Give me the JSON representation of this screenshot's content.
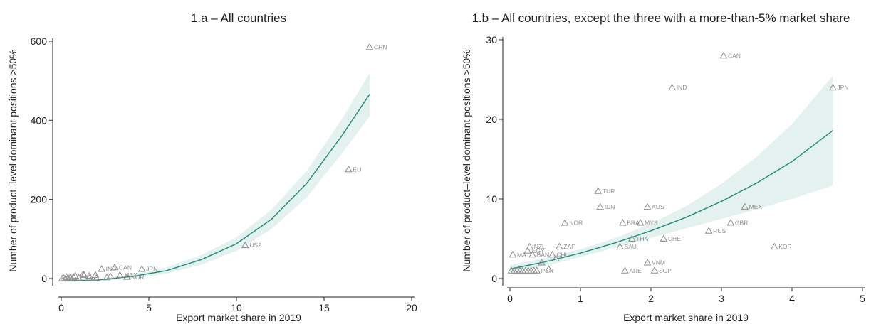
{
  "colors": {
    "fit_line": "#1f8a78",
    "ci_band": "#e3f2ef",
    "marker": "#8c8c8c",
    "axis": "#222222"
  },
  "chart_data": [
    {
      "type": "scatter",
      "title": "1.a – All countries",
      "xlabel": "Export market share in 2019",
      "ylabel": "Number of product–level dominant positions >50%",
      "xlim": [
        0,
        20
      ],
      "ylim": [
        0,
        600
      ],
      "xticks": [
        "0",
        "5",
        "10",
        "15",
        "20"
      ],
      "yticks": [
        "0",
        "200",
        "400",
        "600"
      ],
      "points": [
        {
          "label": "CHN",
          "x": 17.6,
          "y": 585
        },
        {
          "label": "EU",
          "x": 16.4,
          "y": 276
        },
        {
          "label": "USA",
          "x": 10.5,
          "y": 84
        },
        {
          "label": "JPN",
          "x": 4.6,
          "y": 24
        },
        {
          "label": "CAN",
          "x": 3.05,
          "y": 28
        },
        {
          "label": "IND",
          "x": 2.3,
          "y": 24
        },
        {
          "label": "MEX",
          "x": 3.35,
          "y": 9
        },
        {
          "label": "KOR",
          "x": 3.75,
          "y": 4
        },
        {
          "label": "",
          "x": 2.8,
          "y": 6
        },
        {
          "label": "",
          "x": 1.25,
          "y": 11
        },
        {
          "label": "",
          "x": 1.6,
          "y": 7
        },
        {
          "label": "",
          "x": 1.3,
          "y": 9
        },
        {
          "label": "",
          "x": 1.95,
          "y": 9
        },
        {
          "label": "",
          "x": 0.8,
          "y": 7
        },
        {
          "label": "",
          "x": 0.7,
          "y": 4
        },
        {
          "label": "",
          "x": 0.3,
          "y": 4
        },
        {
          "label": "",
          "x": 0.5,
          "y": 2
        },
        {
          "label": "",
          "x": 0.15,
          "y": 1
        },
        {
          "label": "",
          "x": 0.4,
          "y": 1
        },
        {
          "label": "",
          "x": 1.0,
          "y": 2
        },
        {
          "label": "",
          "x": 1.6,
          "y": 1
        },
        {
          "label": "",
          "x": 2.0,
          "y": 1
        },
        {
          "label": "",
          "x": 2.6,
          "y": 3
        },
        {
          "label": "",
          "x": 0.05,
          "y": 0
        },
        {
          "label": "",
          "x": 0.25,
          "y": 0
        },
        {
          "label": "",
          "x": 0.6,
          "y": 0
        }
      ],
      "fit": {
        "x": [
          0,
          2,
          4,
          6,
          8,
          10,
          12,
          14,
          16,
          17.6
        ],
        "y": [
          -6,
          -4,
          5,
          20,
          48,
          88,
          150,
          240,
          360,
          466
        ],
        "lo": [
          -9,
          -7,
          0,
          12,
          35,
          70,
          125,
          205,
          315,
          410
        ],
        "hi": [
          -3,
          -1,
          10,
          28,
          60,
          104,
          174,
          272,
          402,
          520
        ]
      }
    },
    {
      "type": "scatter",
      "title": "1.b – All countries, except the three with a more-than-5% market share",
      "xlabel": "Export market share in 2019",
      "ylabel": "Number of product–level dominant positions >50%",
      "xlim": [
        0,
        5
      ],
      "ylim": [
        0,
        30
      ],
      "xticks": [
        "0",
        "1",
        "2",
        "3",
        "4",
        "5"
      ],
      "yticks": [
        "0",
        "10",
        "20",
        "30"
      ],
      "points": [
        {
          "label": "CAN",
          "x": 3.03,
          "y": 28
        },
        {
          "label": "IND",
          "x": 2.3,
          "y": 24
        },
        {
          "label": "JPN",
          "x": 4.58,
          "y": 24
        },
        {
          "label": "TUR",
          "x": 1.25,
          "y": 11
        },
        {
          "label": "IDN",
          "x": 1.28,
          "y": 9
        },
        {
          "label": "AUS",
          "x": 1.95,
          "y": 9
        },
        {
          "label": "MEX",
          "x": 3.33,
          "y": 9
        },
        {
          "label": "NOR",
          "x": 0.78,
          "y": 7
        },
        {
          "label": "BRA",
          "x": 1.6,
          "y": 7
        },
        {
          "label": "MYS",
          "x": 1.85,
          "y": 7
        },
        {
          "label": "GBR",
          "x": 3.13,
          "y": 7
        },
        {
          "label": "RUS",
          "x": 2.82,
          "y": 6
        },
        {
          "label": "THA",
          "x": 1.73,
          "y": 5
        },
        {
          "label": "CHE",
          "x": 2.18,
          "y": 5
        },
        {
          "label": "SAU",
          "x": 1.56,
          "y": 4
        },
        {
          "label": "KOR",
          "x": 3.75,
          "y": 4
        },
        {
          "label": "ZAF",
          "x": 0.7,
          "y": 4
        },
        {
          "label": "NZL",
          "x": 0.28,
          "y": 4
        },
        {
          "label": "EGY",
          "x": 0.25,
          "y": 3.5
        },
        {
          "label": "MA",
          "x": 0.04,
          "y": 3
        },
        {
          "label": "BAN",
          "x": 0.32,
          "y": 3
        },
        {
          "label": "CHL",
          "x": 0.6,
          "y": 3
        },
        {
          "label": "",
          "x": 0.45,
          "y": 2
        },
        {
          "label": "",
          "x": 0.65,
          "y": 2.5
        },
        {
          "label": "VNM",
          "x": 1.95,
          "y": 2
        },
        {
          "label": "ARE",
          "x": 1.63,
          "y": 1
        },
        {
          "label": "SGP",
          "x": 2.05,
          "y": 1
        },
        {
          "label": "",
          "x": 0.02,
          "y": 1
        },
        {
          "label": "",
          "x": 0.06,
          "y": 1
        },
        {
          "label": "",
          "x": 0.1,
          "y": 1
        },
        {
          "label": "",
          "x": 0.14,
          "y": 1
        },
        {
          "label": "",
          "x": 0.18,
          "y": 1
        },
        {
          "label": "",
          "x": 0.22,
          "y": 1
        },
        {
          "label": "",
          "x": 0.26,
          "y": 1
        },
        {
          "label": "",
          "x": 0.3,
          "y": 1
        },
        {
          "label": "",
          "x": 0.34,
          "y": 1
        },
        {
          "label": "PER",
          "x": 0.38,
          "y": 1
        },
        {
          "label": "",
          "x": 0.55,
          "y": 1.2
        }
      ],
      "fit": {
        "x": [
          0,
          0.5,
          1,
          1.5,
          2,
          2.5,
          3,
          3.5,
          4,
          4.58
        ],
        "y": [
          1.2,
          2.1,
          3.2,
          4.5,
          6.0,
          7.7,
          9.7,
          12.0,
          14.7,
          18.6
        ],
        "lo": [
          0.7,
          1.6,
          2.7,
          3.9,
          5.1,
          6.3,
          7.5,
          8.7,
          10.0,
          11.7
        ],
        "hi": [
          1.7,
          2.6,
          3.7,
          5.1,
          6.9,
          9.1,
          11.9,
          15.3,
          19.4,
          25.5
        ]
      }
    }
  ]
}
